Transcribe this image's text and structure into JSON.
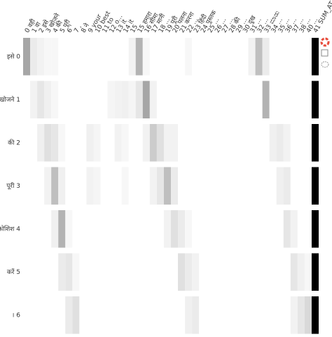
{
  "chart_data": {
    "type": "heatmap",
    "columns": [
      "0 वही",
      "1 वा",
      "2 इसे",
      "3 खोजने",
      "4 की",
      "5 पूरी",
      "6 '",
      "7 ,",
      "8 ने",
      "9 your",
      "10 best",
      "11 to",
      "12 o...",
      "13 it",
      "14 it",
      "15 ",
      "15 हमारा",
      "16 सीमा",
      "17 मानी",
      "18 ...",
      "19 पूरी",
      "20 पलना",
      "21 करना",
      "22 ...",
      "23 हिंदी",
      "24 पुस्तक",
      "25 ...",
      "26 ...",
      "27 ...",
      "28 की",
      "29 ...",
      "30 दुख",
      "31 ...",
      "32 ...",
      "33 ಮಾಡು",
      "34 ...",
      "35 ...",
      "36 ...",
      "37 ...",
      "38 ...",
      "40 ...",
      "41 SUM_AT..."
    ],
    "rows": [
      "इसे 0",
      "खोजने 1",
      "की 2",
      "पूरी 3",
      "कोशिश 4",
      "करें 5",
      "। 6"
    ],
    "z": [
      [
        0.35,
        0.08,
        0.05,
        0.03,
        0.03,
        0,
        0,
        0,
        0,
        0,
        0,
        0,
        0,
        0,
        0,
        0.05,
        0.3,
        0.03,
        0,
        0,
        0,
        0,
        0,
        0.03,
        0,
        0,
        0,
        0,
        0,
        0,
        0,
        0,
        0.05,
        0.25,
        0.08,
        0,
        0,
        0,
        0,
        0,
        0,
        1
      ],
      [
        0,
        0.05,
        0.1,
        0.06,
        0.03,
        0,
        0,
        0,
        0,
        0,
        0,
        0,
        0.04,
        0.05,
        0.06,
        0.04,
        0.1,
        0.35,
        0.05,
        0,
        0,
        0,
        0,
        0,
        0,
        0,
        0,
        0,
        0,
        0,
        0,
        0,
        0,
        0,
        0.3,
        0,
        0,
        0,
        0,
        0,
        0,
        1
      ],
      [
        0,
        0,
        0.06,
        0.12,
        0.1,
        0.03,
        0,
        0,
        0,
        0.06,
        0.04,
        0,
        0,
        0.05,
        0.03,
        0,
        0,
        0.05,
        0.2,
        0.12,
        0.05,
        0.05,
        0,
        0,
        0,
        0,
        0,
        0,
        0,
        0,
        0,
        0,
        0,
        0,
        0,
        0.06,
        0.08,
        0.05,
        0,
        0,
        0,
        1
      ],
      [
        0,
        0,
        0,
        0.05,
        0.25,
        0.06,
        0,
        0,
        0,
        0.05,
        0.04,
        0,
        0,
        0,
        0.03,
        0,
        0,
        0,
        0.05,
        0.1,
        0.25,
        0.08,
        0,
        0,
        0,
        0,
        0,
        0,
        0,
        0,
        0,
        0,
        0,
        0,
        0,
        0,
        0.06,
        0.08,
        0,
        0,
        0,
        1
      ],
      [
        0,
        0,
        0,
        0,
        0.06,
        0.3,
        0.03,
        0,
        0,
        0,
        0,
        0,
        0,
        0,
        0,
        0,
        0,
        0,
        0,
        0,
        0.05,
        0.12,
        0.08,
        0.03,
        0,
        0,
        0,
        0,
        0,
        0,
        0,
        0,
        0,
        0,
        0,
        0,
        0,
        0.1,
        0.05,
        0,
        0,
        1
      ],
      [
        0,
        0,
        0,
        0,
        0,
        0.08,
        0.1,
        0.03,
        0,
        0,
        0,
        0,
        0,
        0,
        0,
        0,
        0,
        0,
        0,
        0,
        0,
        0,
        0.12,
        0.08,
        0.05,
        0,
        0,
        0,
        0,
        0,
        0,
        0,
        0,
        0,
        0,
        0,
        0,
        0,
        0.1,
        0.06,
        0.03,
        1
      ],
      [
        0,
        0,
        0,
        0,
        0,
        0,
        0.08,
        0.12,
        0,
        0,
        0,
        0,
        0,
        0,
        0,
        0,
        0,
        0,
        0,
        0,
        0,
        0,
        0,
        0.06,
        0.08,
        0,
        0,
        0,
        0,
        0,
        0,
        0,
        0,
        0,
        0,
        0,
        0,
        0,
        0.05,
        0.1,
        0.15,
        1
      ]
    ]
  }
}
